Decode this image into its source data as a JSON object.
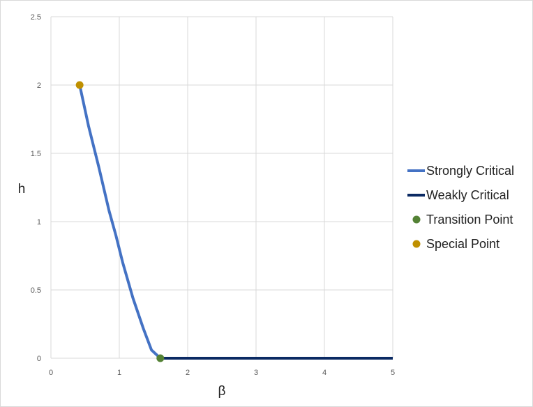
{
  "chart_data": {
    "type": "line",
    "title": "",
    "xlabel": "β",
    "ylabel": "h",
    "xlim": [
      0,
      5
    ],
    "ylim": [
      0,
      2.5
    ],
    "x_ticks": [
      0,
      1,
      2,
      3,
      4,
      5
    ],
    "y_ticks": [
      0,
      0.5,
      1,
      1.5,
      2,
      2.5
    ],
    "x_tick_labels": [
      "0",
      "1",
      "2",
      "3",
      "4",
      "5"
    ],
    "y_tick_labels": [
      "0",
      "0.5",
      "1",
      "1.5",
      "2",
      "2.5"
    ],
    "grid": true,
    "legend_position": "right",
    "series": [
      {
        "name": "Strongly Critical",
        "kind": "line",
        "color": "#4472C4",
        "points": [
          [
            0.42,
            2.0
          ],
          [
            0.55,
            1.7
          ],
          [
            0.7,
            1.4
          ],
          [
            0.85,
            1.08
          ],
          [
            0.95,
            0.9
          ],
          [
            1.05,
            0.7
          ],
          [
            1.2,
            0.44
          ],
          [
            1.35,
            0.22
          ],
          [
            1.47,
            0.06
          ],
          [
            1.6,
            0.0
          ]
        ]
      },
      {
        "name": "Weakly Critical",
        "kind": "line",
        "color": "#0B2A63",
        "points": [
          [
            1.6,
            0.0
          ],
          [
            5.0,
            0.0
          ]
        ]
      },
      {
        "name": "Transition Point",
        "kind": "point",
        "color": "#548235",
        "points": [
          [
            1.6,
            0.0
          ]
        ]
      },
      {
        "name": "Special Point",
        "kind": "point",
        "color": "#BF9000",
        "points": [
          [
            0.42,
            2.0
          ]
        ]
      }
    ]
  }
}
